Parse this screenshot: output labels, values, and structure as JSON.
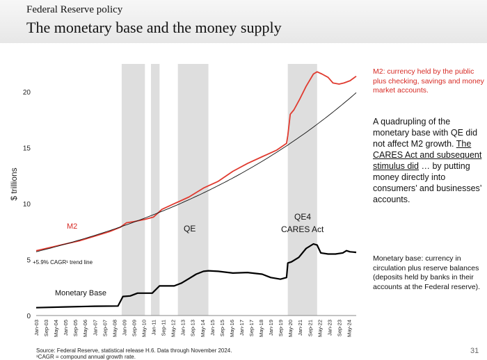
{
  "header": {
    "kicker": "Federal Reserve policy",
    "title": "The monetary base and the money supply"
  },
  "notes": {
    "m2_definition": "M2: currency held by the public plus checking, savings and money market accounts.",
    "qe_part1": "A quadrupling of the monetary base with QE did not affect M2 growth.",
    "qe_part2": "The CARES Act and subsequent stimulus did",
    "qe_part3": "… by putting money directly into consumers’ and businesses’ accounts.",
    "monetary_base_definition": "Monetary base: currency in circulation plus reserve balances (deposits held by banks in their accounts at the Federal reserve)."
  },
  "footer": {
    "source": "Source: Federal Reserve, statistical release H.6. Data through November 2024.",
    "footnote": "¹CAGR = compound annual growth rate.",
    "page_number": "31"
  },
  "chart_data": {
    "type": "line",
    "ylabel": "$ trillions",
    "ylim": [
      0,
      22.5
    ],
    "yticks": [
      0,
      5,
      10,
      15,
      20
    ],
    "xlim": [
      "2003-01",
      "2024-11"
    ],
    "x_tick_labels": [
      "Jan-03",
      "Sep-03",
      "May-04",
      "Jan-05",
      "Sep-05",
      "May-06",
      "Jan-07",
      "Sep-07",
      "May-08",
      "Jan-09",
      "Sep-09",
      "May-10",
      "Jan-11",
      "Sep-11",
      "May-12",
      "Jan-13",
      "Sep-13",
      "May-14",
      "Jan-15",
      "Sep-15",
      "May-16",
      "Jan-17",
      "Sep-17",
      "May-18",
      "Jan-19",
      "Sep-19",
      "May-20",
      "Jan-21",
      "Sep-21",
      "May-22",
      "Jan-23",
      "Sep-23",
      "May-24"
    ],
    "shaded_periods": [
      {
        "start": "2008-11",
        "end": "2010-06"
      },
      {
        "start": "2010-11",
        "end": "2011-06"
      },
      {
        "start": "2012-09",
        "end": "2014-10"
      },
      {
        "start": "2020-03",
        "end": "2022-03"
      }
    ],
    "annotations": [
      "M2",
      "QE",
      "QE4",
      "CARES Act",
      "+5.9% CAGR¹ trend line",
      "Monetary Base"
    ],
    "series": [
      {
        "name": "M2",
        "color": "#e03a2f",
        "points": [
          [
            "2003-01",
            5.8
          ],
          [
            "2004-01",
            6.1
          ],
          [
            "2005-01",
            6.4
          ],
          [
            "2006-01",
            6.7
          ],
          [
            "2007-01",
            7.1
          ],
          [
            "2008-01",
            7.5
          ],
          [
            "2008-10",
            7.9
          ],
          [
            "2009-03",
            8.3
          ],
          [
            "2009-09",
            8.4
          ],
          [
            "2010-06",
            8.6
          ],
          [
            "2011-01",
            8.8
          ],
          [
            "2011-08",
            9.5
          ],
          [
            "2012-06",
            10.0
          ],
          [
            "2013-06",
            10.6
          ],
          [
            "2014-06",
            11.4
          ],
          [
            "2015-06",
            12.0
          ],
          [
            "2016-06",
            12.9
          ],
          [
            "2017-06",
            13.6
          ],
          [
            "2018-06",
            14.2
          ],
          [
            "2019-06",
            14.8
          ],
          [
            "2020-02",
            15.4
          ],
          [
            "2020-03",
            16.1
          ],
          [
            "2020-05",
            18.0
          ],
          [
            "2020-08",
            18.4
          ],
          [
            "2021-01",
            19.4
          ],
          [
            "2021-06",
            20.5
          ],
          [
            "2021-12",
            21.6
          ],
          [
            "2022-03",
            21.8
          ],
          [
            "2022-07",
            21.6
          ],
          [
            "2022-12",
            21.3
          ],
          [
            "2023-04",
            20.8
          ],
          [
            "2023-09",
            20.7
          ],
          [
            "2024-01",
            20.8
          ],
          [
            "2024-06",
            21.0
          ],
          [
            "2024-11",
            21.4
          ]
        ]
      },
      {
        "name": "Monetary Base",
        "color": "#000000",
        "points": [
          [
            "2003-01",
            0.7
          ],
          [
            "2005-01",
            0.77
          ],
          [
            "2007-01",
            0.83
          ],
          [
            "2008-08",
            0.85
          ],
          [
            "2008-12",
            1.7
          ],
          [
            "2009-06",
            1.75
          ],
          [
            "2009-12",
            2.0
          ],
          [
            "2010-06",
            2.0
          ],
          [
            "2010-12",
            2.0
          ],
          [
            "2011-06",
            2.65
          ],
          [
            "2012-06",
            2.65
          ],
          [
            "2012-12",
            2.9
          ],
          [
            "2013-06",
            3.3
          ],
          [
            "2013-12",
            3.7
          ],
          [
            "2014-06",
            3.95
          ],
          [
            "2014-10",
            4.0
          ],
          [
            "2015-06",
            3.95
          ],
          [
            "2016-06",
            3.8
          ],
          [
            "2017-06",
            3.85
          ],
          [
            "2018-06",
            3.7
          ],
          [
            "2019-01",
            3.4
          ],
          [
            "2019-09",
            3.25
          ],
          [
            "2020-02",
            3.4
          ],
          [
            "2020-03",
            4.7
          ],
          [
            "2020-06",
            4.8
          ],
          [
            "2020-12",
            5.2
          ],
          [
            "2021-06",
            6.0
          ],
          [
            "2021-12",
            6.4
          ],
          [
            "2022-03",
            6.3
          ],
          [
            "2022-06",
            5.6
          ],
          [
            "2022-12",
            5.5
          ],
          [
            "2023-06",
            5.5
          ],
          [
            "2023-12",
            5.6
          ],
          [
            "2024-03",
            5.8
          ],
          [
            "2024-06",
            5.7
          ],
          [
            "2024-11",
            5.65
          ]
        ]
      },
      {
        "name": "+5.9% CAGR¹ trend line",
        "color": "#111111",
        "growth_rate": 0.059,
        "start": [
          "2003-01",
          5.7
        ],
        "end": "2024-11"
      }
    ]
  }
}
